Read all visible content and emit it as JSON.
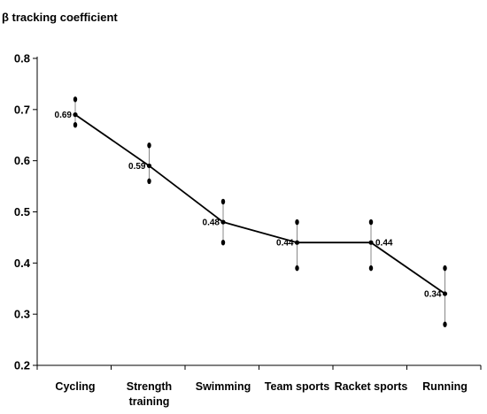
{
  "chart_data": {
    "type": "line",
    "ylabel": "β tracking coefficient",
    "xlabel": "",
    "categories": [
      [
        "Cycling"
      ],
      [
        "Strength",
        "training"
      ],
      [
        "Swimming"
      ],
      [
        "Team sports"
      ],
      [
        "Racket sports"
      ],
      [
        "Running"
      ]
    ],
    "series": [
      {
        "values": [
          0.69,
          0.59,
          0.48,
          0.44,
          0.44,
          0.34
        ],
        "labels": [
          "0.69",
          "0.59",
          "0.48",
          "0.44",
          "0.44",
          "0.34"
        ],
        "label_side": [
          "left",
          "left",
          "left",
          "left",
          "right",
          "left"
        ],
        "ci_lower": [
          0.67,
          0.56,
          0.44,
          0.39,
          0.39,
          0.28
        ],
        "ci_upper": [
          0.72,
          0.63,
          0.52,
          0.48,
          0.48,
          0.39
        ]
      }
    ],
    "yticks": [
      "0.2",
      "0.3",
      "0.4",
      "0.5",
      "0.6",
      "0.7",
      "0.8"
    ],
    "ylim": [
      0.2,
      0.8
    ],
    "grid": false,
    "legend": "none",
    "colors": {
      "line": "#000000",
      "error_bar": "#888888",
      "marker": "#000000"
    }
  }
}
